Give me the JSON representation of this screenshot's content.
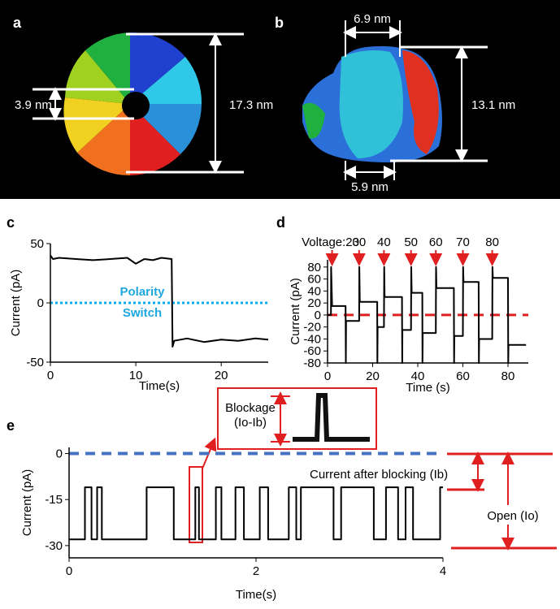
{
  "structures": [
    {
      "panel_label": "a",
      "dimensions": [
        "3.9 nm",
        "17.3 nm"
      ]
    },
    {
      "panel_label": "b",
      "dimensions": [
        "6.9 nm",
        "13.1 nm",
        "5.9 nm"
      ]
    }
  ],
  "chart_data": [
    {
      "type": "line",
      "panel_label": "c",
      "x_label": "Time(s)",
      "y_label": "Current (pA)",
      "xlim": [
        0,
        25.5
      ],
      "ylim": [
        -50,
        50
      ],
      "xticks": [
        0,
        10,
        20
      ],
      "yticks": [
        -50,
        0,
        50
      ],
      "reference_line": {
        "value": 0,
        "color": "#00b0f0"
      },
      "annotation": [
        "Polarity",
        "Switch"
      ],
      "series": [
        {
          "color": "#000000",
          "x": [
            0,
            0.3,
            1,
            3,
            5,
            7,
            9,
            10,
            11,
            12,
            13,
            14.2,
            14.3,
            14.5,
            16,
            18,
            20,
            22,
            24,
            25.5
          ],
          "values": [
            40,
            37,
            38,
            37,
            36,
            37,
            38,
            33,
            37,
            36,
            38,
            37,
            -37,
            -32,
            -30,
            -33,
            -31,
            -32,
            -30,
            -31
          ]
        }
      ]
    },
    {
      "type": "line",
      "panel_label": "d",
      "x_label": "Time (s)",
      "y_label": "Current (pA)",
      "xlim": [
        0,
        89
      ],
      "ylim": [
        -80,
        92
      ],
      "xticks": [
        0,
        20,
        40,
        60,
        80
      ],
      "yticks": [
        -80,
        -60,
        -40,
        -20,
        0,
        20,
        40,
        60,
        80
      ],
      "reference_line": {
        "value": 0,
        "color": "#e02020"
      },
      "voltage_markers": [
        {
          "x": 2,
          "label": "Voltage:20"
        },
        {
          "x": 14,
          "label": "30"
        },
        {
          "x": 25,
          "label": "40"
        },
        {
          "x": 37,
          "label": "50"
        },
        {
          "x": 48,
          "label": "60"
        },
        {
          "x": 60,
          "label": "70"
        },
        {
          "x": 73,
          "label": "80"
        }
      ],
      "series": [
        {
          "color": "#000000",
          "x": [
            0,
            1.5,
            1.6,
            2,
            2.5,
            8,
            8.1,
            8.2,
            14,
            14.1,
            14.3,
            22,
            22.1,
            22.2,
            25,
            25.1,
            25.3,
            33,
            33.1,
            33.2,
            37,
            37.1,
            37.3,
            42,
            42.1,
            42.2,
            48,
            48.1,
            48.3,
            56,
            56.1,
            56.2,
            60,
            60.1,
            60.3,
            67,
            67.1,
            67.2,
            73,
            73.1,
            73.3,
            80,
            80.1,
            80.2,
            88
          ],
          "values": [
            0,
            0,
            80,
            15,
            15,
            15,
            -80,
            -10,
            -10,
            80,
            22,
            22,
            -80,
            -20,
            -20,
            80,
            30,
            30,
            -80,
            -25,
            -25,
            80,
            37,
            37,
            -80,
            -30,
            -30,
            80,
            45,
            45,
            -80,
            -35,
            -35,
            80,
            55,
            55,
            -80,
            -40,
            -40,
            80,
            62,
            62,
            -80,
            -50,
            -50
          ]
        }
      ]
    },
    {
      "type": "line",
      "panel_label": "e",
      "x_label": "Time(s)",
      "y_label": "Current (pA)",
      "xlim": [
        0,
        4
      ],
      "ylim": [
        -34,
        2
      ],
      "xticks": [
        0,
        2,
        4
      ],
      "yticks": [
        0,
        -15,
        -30
      ],
      "reference_line": {
        "value": 0,
        "color": "#4472c4"
      },
      "inset_label": [
        "Blockage",
        "(Io-Ib)"
      ],
      "annotations": [
        "Current after blocking (Ib)",
        "Open (Io)"
      ],
      "series": [
        {
          "color": "#000000",
          "x": [
            0,
            0.17,
            0.17,
            0.24,
            0.24,
            0.3,
            0.3,
            0.35,
            0.35,
            0.83,
            0.83,
            1.12,
            1.12,
            1.35,
            1.35,
            1.39,
            1.39,
            1.57,
            1.57,
            1.63,
            1.63,
            1.78,
            1.78,
            1.87,
            1.87,
            2.04,
            2.04,
            2.13,
            2.13,
            2.35,
            2.35,
            2.43,
            2.43,
            2.48,
            2.48,
            2.83,
            2.83,
            2.91,
            2.91,
            3.26,
            3.26,
            3.39,
            3.39,
            3.52,
            3.52,
            3.6,
            3.6,
            3.68,
            3.68,
            3.97,
            3.97,
            4.0
          ],
          "values": [
            -28,
            -28,
            -11,
            -11,
            -28,
            -28,
            -11,
            -11,
            -28,
            -28,
            -11,
            -11,
            -28,
            -28,
            -11,
            -11,
            -28,
            -28,
            -11,
            -11,
            -28,
            -28,
            -11,
            -11,
            -28,
            -28,
            -11,
            -11,
            -28,
            -28,
            -11,
            -11,
            -28,
            -28,
            -11,
            -11,
            -28,
            -28,
            -11,
            -11,
            -28,
            -28,
            -11,
            -11,
            -28,
            -28,
            -11,
            -11,
            -28,
            -28,
            -11,
            -11
          ]
        }
      ]
    }
  ]
}
